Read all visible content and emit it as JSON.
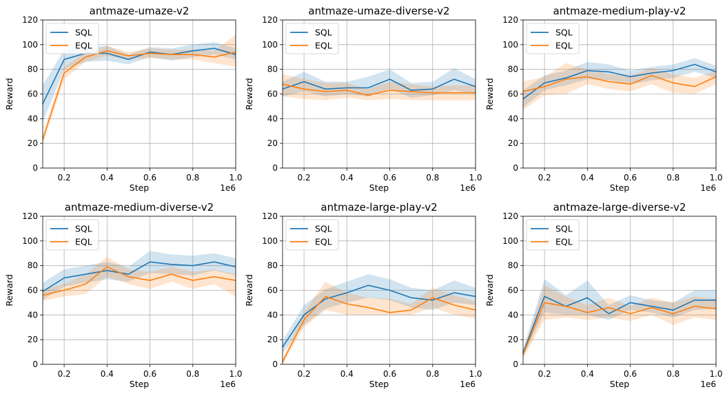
{
  "colors": {
    "sql": "#1f77b4",
    "eql": "#ff7f0e"
  },
  "chart_data": [
    {
      "type": "line",
      "title": "antmaze-umaze-v2",
      "xlabel": "Step",
      "ylabel": "Reward",
      "x_offset_label": "1e6",
      "xlim": [
        0.1,
        1.0
      ],
      "ylim": [
        0,
        120
      ],
      "x": [
        0.1,
        0.2,
        0.3,
        0.4,
        0.5,
        0.6,
        0.7,
        0.8,
        0.9,
        1.0
      ],
      "series": [
        {
          "name": "SQL",
          "values": [
            52,
            88,
            93,
            93,
            88,
            94,
            92,
            95,
            97,
            92
          ],
          "band_low": [
            37,
            80,
            86,
            87,
            84,
            90,
            87,
            90,
            92,
            88
          ],
          "band_high": [
            67,
            96,
            98,
            99,
            92,
            98,
            97,
            100,
            102,
            97
          ]
        },
        {
          "name": "EQL",
          "values": [
            23,
            77,
            90,
            95,
            91,
            93,
            92,
            92,
            90,
            94
          ],
          "band_low": [
            19,
            72,
            86,
            91,
            88,
            89,
            88,
            88,
            85,
            82
          ],
          "band_high": [
            27,
            82,
            94,
            99,
            94,
            97,
            96,
            96,
            95,
            108
          ]
        }
      ]
    },
    {
      "type": "line",
      "title": "antmaze-umaze-diverse-v2",
      "xlabel": "Step",
      "ylabel": "Reward",
      "x_offset_label": "1e6",
      "xlim": [
        0.1,
        1.0
      ],
      "ylim": [
        0,
        120
      ],
      "x": [
        0.1,
        0.2,
        0.3,
        0.4,
        0.5,
        0.6,
        0.7,
        0.8,
        0.9,
        1.0
      ],
      "series": [
        {
          "name": "SQL",
          "values": [
            64,
            70,
            64,
            65,
            65,
            72,
            63,
            64,
            72,
            66
          ],
          "band_low": [
            58,
            62,
            58,
            60,
            58,
            64,
            57,
            59,
            63,
            60
          ],
          "band_high": [
            70,
            78,
            70,
            70,
            74,
            80,
            69,
            70,
            81,
            72
          ]
        },
        {
          "name": "EQL",
          "values": [
            68,
            64,
            62,
            63,
            59,
            63,
            62,
            61,
            61,
            61
          ],
          "band_low": [
            58,
            56,
            55,
            57,
            55,
            56,
            55,
            55,
            55,
            55
          ],
          "band_high": [
            76,
            72,
            69,
            69,
            64,
            70,
            68,
            66,
            67,
            67
          ]
        }
      ]
    },
    {
      "type": "line",
      "title": "antmaze-medium-play-v2",
      "xlabel": "Step",
      "ylabel": "Reward",
      "x_offset_label": "1e6",
      "xlim": [
        0.1,
        1.0
      ],
      "ylim": [
        0,
        120
      ],
      "x": [
        0.1,
        0.2,
        0.3,
        0.4,
        0.5,
        0.6,
        0.7,
        0.8,
        0.9,
        1.0
      ],
      "series": [
        {
          "name": "SQL",
          "values": [
            56,
            69,
            73,
            79,
            78,
            74,
            77,
            79,
            84,
            78
          ],
          "band_low": [
            49,
            63,
            67,
            72,
            71,
            68,
            71,
            73,
            78,
            73
          ],
          "band_high": [
            63,
            75,
            79,
            86,
            84,
            79,
            82,
            84,
            89,
            83
          ]
        },
        {
          "name": "EQL",
          "values": [
            62,
            66,
            72,
            74,
            70,
            68,
            75,
            69,
            66,
            74
          ],
          "band_low": [
            47,
            59,
            60,
            68,
            64,
            62,
            68,
            61,
            60,
            68
          ],
          "band_high": [
            70,
            74,
            85,
            80,
            76,
            75,
            81,
            76,
            73,
            79
          ]
        }
      ]
    },
    {
      "type": "line",
      "title": "antmaze-medium-diverse-v2",
      "xlabel": "Step",
      "ylabel": "Reward",
      "x_offset_label": "1e6",
      "xlim": [
        0.1,
        1.0
      ],
      "ylim": [
        0,
        120
      ],
      "x": [
        0.1,
        0.2,
        0.3,
        0.4,
        0.5,
        0.6,
        0.7,
        0.8,
        0.9,
        1.0
      ],
      "series": [
        {
          "name": "SQL",
          "values": [
            59,
            70,
            73,
            76,
            73,
            83,
            81,
            80,
            83,
            79
          ],
          "band_low": [
            52,
            63,
            66,
            69,
            67,
            74,
            73,
            72,
            76,
            72
          ],
          "band_high": [
            66,
            77,
            80,
            83,
            79,
            92,
            89,
            88,
            90,
            86
          ]
        },
        {
          "name": "EQL",
          "values": [
            56,
            60,
            65,
            79,
            71,
            68,
            73,
            68,
            71,
            68
          ],
          "band_low": [
            51,
            55,
            57,
            71,
            65,
            61,
            67,
            61,
            65,
            55
          ],
          "band_high": [
            61,
            65,
            73,
            87,
            77,
            75,
            79,
            75,
            77,
            73
          ]
        }
      ]
    },
    {
      "type": "line",
      "title": "antmaze-large-play-v2",
      "xlabel": "Step",
      "ylabel": "Reward",
      "x_offset_label": "1e6",
      "xlim": [
        0.1,
        1.0
      ],
      "ylim": [
        0,
        120
      ],
      "x": [
        0.1,
        0.2,
        0.3,
        0.4,
        0.5,
        0.6,
        0.7,
        0.8,
        0.9,
        1.0
      ],
      "series": [
        {
          "name": "SQL",
          "values": [
            14,
            40,
            53,
            58,
            64,
            60,
            54,
            52,
            58,
            55
          ],
          "band_low": [
            9,
            32,
            45,
            50,
            54,
            52,
            46,
            44,
            50,
            48
          ],
          "band_high": [
            19,
            48,
            61,
            67,
            73,
            69,
            62,
            60,
            68,
            62
          ]
        },
        {
          "name": "EQL",
          "values": [
            2,
            36,
            55,
            49,
            46,
            42,
            44,
            54,
            48,
            44
          ],
          "band_low": [
            0,
            30,
            44,
            40,
            40,
            40,
            40,
            46,
            40,
            37
          ],
          "band_high": [
            5,
            42,
            67,
            58,
            54,
            53,
            49,
            62,
            56,
            51
          ]
        }
      ]
    },
    {
      "type": "line",
      "title": "antmaze-large-diverse-v2",
      "xlabel": "Step",
      "ylabel": "Reward",
      "x_offset_label": "1e6",
      "xlim": [
        0.1,
        1.0
      ],
      "ylim": [
        0,
        120
      ],
      "x": [
        0.1,
        0.2,
        0.3,
        0.4,
        0.5,
        0.6,
        0.7,
        0.8,
        0.9,
        1.0
      ],
      "series": [
        {
          "name": "SQL",
          "values": [
            9,
            55,
            47,
            54,
            41,
            50,
            47,
            44,
            52,
            52
          ],
          "band_low": [
            6,
            42,
            40,
            40,
            36,
            44,
            42,
            38,
            44,
            45
          ],
          "band_high": [
            12,
            69,
            56,
            68,
            48,
            56,
            52,
            50,
            60,
            60
          ]
        },
        {
          "name": "EQL",
          "values": [
            8,
            50,
            47,
            42,
            46,
            41,
            46,
            41,
            47,
            45
          ],
          "band_low": [
            5,
            36,
            38,
            36,
            38,
            35,
            40,
            32,
            38,
            36
          ],
          "band_high": [
            11,
            64,
            55,
            48,
            54,
            47,
            54,
            50,
            55,
            53
          ]
        }
      ]
    }
  ]
}
